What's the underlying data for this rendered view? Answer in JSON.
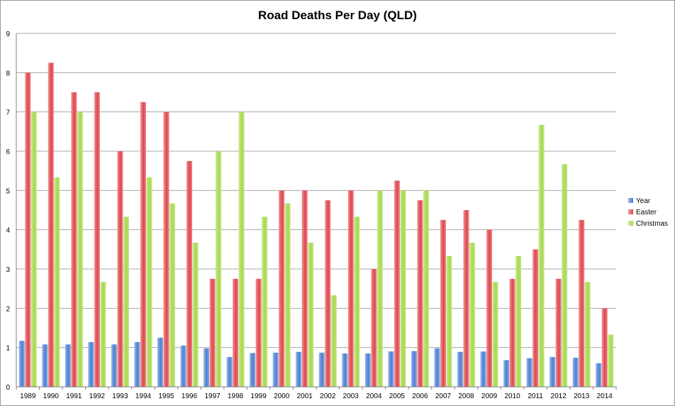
{
  "chart_data": {
    "type": "bar",
    "title": "Road Deaths Per Day (QLD)",
    "xlabel": "",
    "ylabel": "",
    "ylim": [
      0,
      9
    ],
    "yticks": [
      "0",
      "1",
      "2",
      "3",
      "4",
      "5",
      "6",
      "7",
      "8",
      "9"
    ],
    "grid": true,
    "legend_position": "right",
    "categories": [
      "1989",
      "1990",
      "1991",
      "1992",
      "1993",
      "1994",
      "1995",
      "1996",
      "1997",
      "1998",
      "1999",
      "2000",
      "2001",
      "2002",
      "2003",
      "2004",
      "2005",
      "2006",
      "2007",
      "2008",
      "2009",
      "2010",
      "2011",
      "2012",
      "2013",
      "2014"
    ],
    "series": [
      {
        "name": "Year",
        "color": "#4a7fd4",
        "values": [
          1.17,
          1.08,
          1.08,
          1.14,
          1.08,
          1.14,
          1.25,
          1.05,
          0.98,
          0.76,
          0.86,
          0.87,
          0.89,
          0.87,
          0.85,
          0.85,
          0.9,
          0.91,
          0.98,
          0.89,
          0.9,
          0.68,
          0.73,
          0.76,
          0.74,
          0.6
        ]
      },
      {
        "name": "Easter",
        "color": "#e0454b",
        "values": [
          8.0,
          8.25,
          7.5,
          7.5,
          6.0,
          7.25,
          7.0,
          5.75,
          2.75,
          2.75,
          2.75,
          5.0,
          5.0,
          4.75,
          5.0,
          3.0,
          5.25,
          4.75,
          4.25,
          4.5,
          4.0,
          2.75,
          3.5,
          2.75,
          4.25,
          2.0
        ]
      },
      {
        "name": "Christmas",
        "color": "#a6d84a",
        "values": [
          7.0,
          5.33,
          7.0,
          2.67,
          4.33,
          5.33,
          4.67,
          3.67,
          6.0,
          7.0,
          4.33,
          4.67,
          3.67,
          2.33,
          4.33,
          5.0,
          5.0,
          5.0,
          3.33,
          3.67,
          2.67,
          3.33,
          6.67,
          5.67,
          2.67,
          1.33
        ]
      }
    ]
  }
}
